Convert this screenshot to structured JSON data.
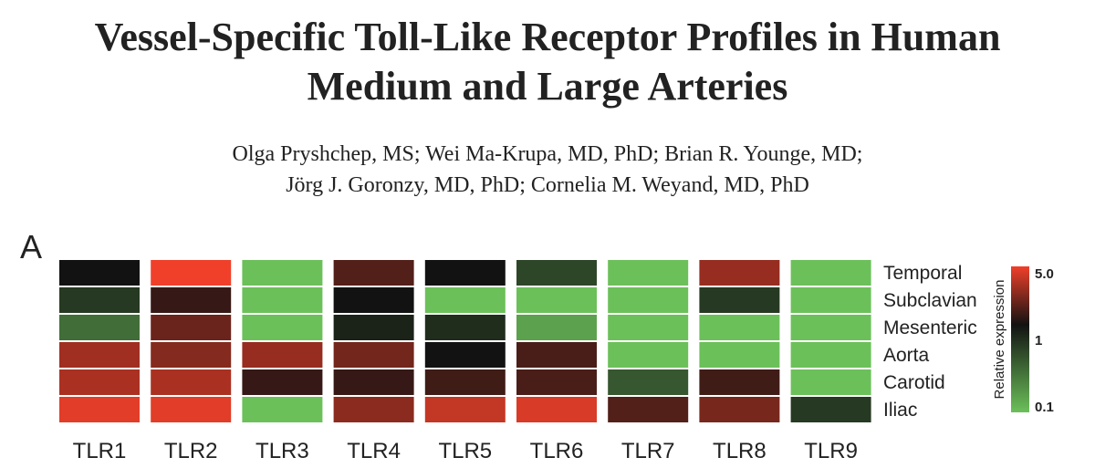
{
  "title_line1": "Vessel-Specific Toll-Like Receptor Profiles in Human",
  "title_line2": "Medium and Large Arteries",
  "authors_line1": "Olga Pryshchep, MS; Wei Ma-Krupa, MD, PhD; Brian R. Younge, MD;",
  "authors_line2": "Jörg J. Goronzy, MD, PhD; Cornelia M. Weyand, MD, PhD",
  "panel_label": "A",
  "chart_data": {
    "type": "heatmap",
    "columns": [
      "TLR1",
      "TLR2",
      "TLR3",
      "TLR4",
      "TLR5",
      "TLR6",
      "TLR7",
      "TLR8",
      "TLR9"
    ],
    "rows": [
      "Temporal",
      "Subclavian",
      "Mesenteric",
      "Aorta",
      "Carotid",
      "Iliac"
    ],
    "scale": "log",
    "colorbar": {
      "label": "Relative expression",
      "ticks": [
        "5.0",
        "1",
        "0.1"
      ],
      "min": 0.1,
      "mid": 1,
      "max": 5.0,
      "colors": {
        "low": "#6cc05a",
        "mid": "#121212",
        "high": "#f0402a"
      }
    },
    "values": [
      [
        1.0,
        5.0,
        0.1,
        1.6,
        1.0,
        0.5,
        0.1,
        2.6,
        0.1
      ],
      [
        0.6,
        1.3,
        0.1,
        1.0,
        0.1,
        0.1,
        0.1,
        0.6,
        0.1
      ],
      [
        0.3,
        1.9,
        0.1,
        0.8,
        0.7,
        0.15,
        0.1,
        0.1,
        0.1
      ],
      [
        2.8,
        2.3,
        2.6,
        2.0,
        1.0,
        1.5,
        0.1,
        0.1,
        0.1
      ],
      [
        3.0,
        3.0,
        1.3,
        1.3,
        1.4,
        1.5,
        0.4,
        1.4,
        0.1
      ],
      [
        4.5,
        4.5,
        0.1,
        2.4,
        3.6,
        4.2,
        1.6,
        2.1,
        0.6
      ]
    ]
  }
}
